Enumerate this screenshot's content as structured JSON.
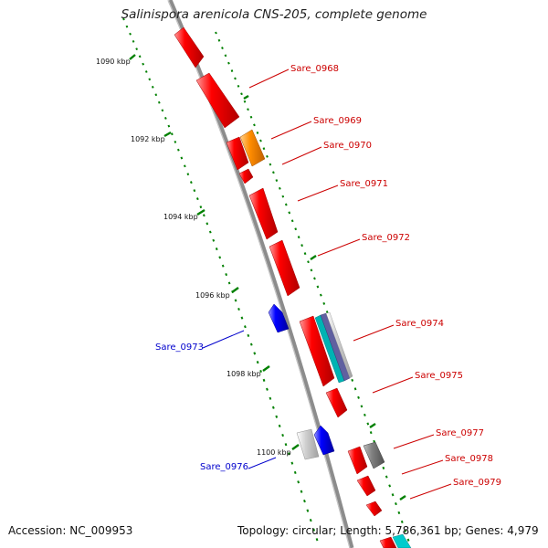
{
  "title": "Salinispora arenicola CNS-205, complete genome",
  "footer": {
    "accession": "Accession: NC_009953",
    "summary": "Topology: circular; Length: 5,786,361 bp; Genes: 4,979"
  },
  "scale_ticks": [
    "1090 kbp",
    "1092 kbp",
    "1094 kbp",
    "1096 kbp",
    "1098 kbp",
    "1100 kbp"
  ],
  "genes": [
    {
      "name": "Sare_0968",
      "strand": "forward",
      "color": "#ff0000"
    },
    {
      "name": "Sare_0969",
      "strand": "forward",
      "color": "#ff8c00"
    },
    {
      "name": "Sare_0970",
      "strand": "forward",
      "color": "#ff0000"
    },
    {
      "name": "Sare_0971",
      "strand": "forward",
      "color": "#ff0000"
    },
    {
      "name": "Sare_0972",
      "strand": "forward",
      "color": "#ff0000"
    },
    {
      "name": "Sare_0973",
      "strand": "reverse",
      "color": "#0000ff"
    },
    {
      "name": "Sare_0974",
      "strand": "forward",
      "color": "#ff0000"
    },
    {
      "name": "Sare_0975",
      "strand": "forward",
      "color": "#ff0000"
    },
    {
      "name": "Sare_0976",
      "strand": "reverse",
      "color": "#0000ff"
    },
    {
      "name": "Sare_0977",
      "strand": "forward",
      "color": "#ff0000"
    },
    {
      "name": "Sare_0978",
      "strand": "forward",
      "color": "#808080"
    },
    {
      "name": "Sare_0979",
      "strand": "forward",
      "color": "#ff0000"
    }
  ],
  "colors": {
    "backbone": "#8c8c8c",
    "forward_gene": "#ff0000",
    "reverse_gene": "#0000ff",
    "tick_green": "#008000",
    "label_forward": "#cc0000",
    "label_reverse": "#0000cc",
    "feature_teal": "#00b3b3",
    "feature_orange": "#ff8c00",
    "feature_gray": "#808080",
    "feature_lightgray": "#c8c8c8",
    "feature_purple": "#6060a0"
  }
}
